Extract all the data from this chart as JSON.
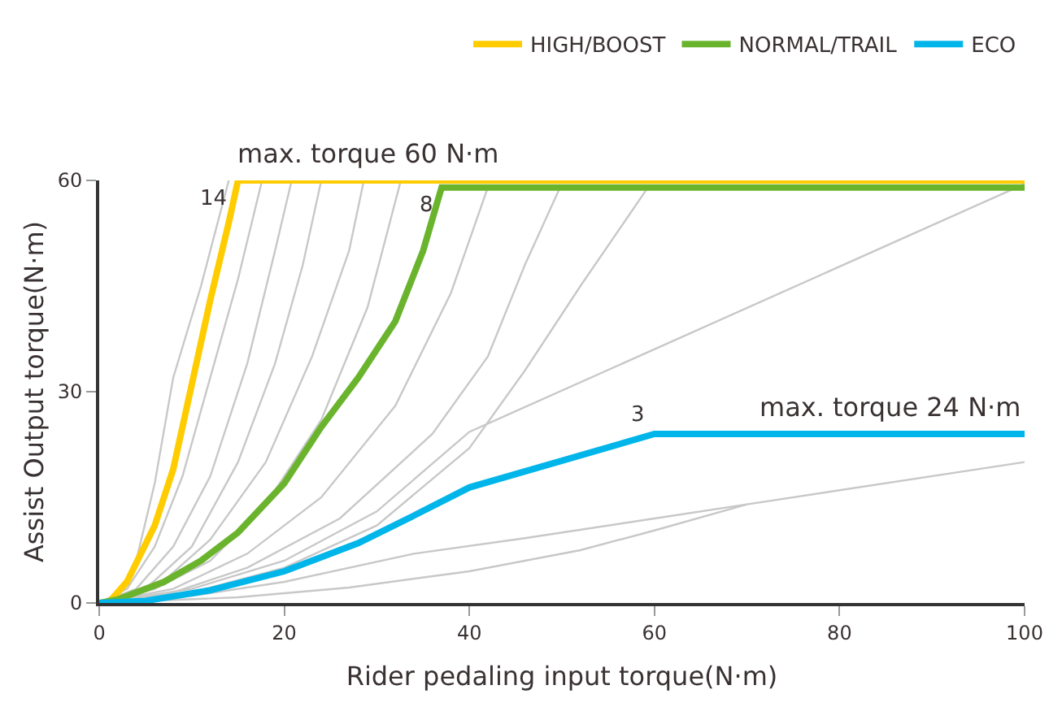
{
  "chart_data": {
    "type": "line",
    "xlabel": "Rider pedaling input torque(N·m)",
    "ylabel": "Assist Output torque(N·m)",
    "xlim": [
      0,
      100
    ],
    "ylim": [
      0,
      60
    ],
    "xticks": [
      0,
      20,
      40,
      60,
      80,
      100
    ],
    "yticks": [
      0,
      30,
      60
    ],
    "legend": "top right",
    "marker": "none",
    "line_style": "solid",
    "series": [
      {
        "color": "#c8c8c8",
        "x": [
          0,
          2,
          4,
          6,
          8,
          11,
          14
        ],
        "values": [
          0,
          1,
          6,
          17,
          32,
          45,
          60
        ]
      },
      {
        "color": "#c8c8c8",
        "x": [
          0,
          3,
          6,
          9,
          12,
          15,
          17.6
        ],
        "values": [
          0,
          2,
          8,
          18,
          32,
          46,
          60
        ]
      },
      {
        "color": "#c8c8c8",
        "x": [
          0,
          4,
          8,
          12,
          16,
          19,
          20.8
        ],
        "values": [
          0,
          2,
          8,
          18,
          34,
          50,
          60
        ]
      },
      {
        "color": "#c8c8c8",
        "x": [
          0,
          5,
          10,
          15,
          19,
          22,
          24
        ],
        "values": [
          0,
          2,
          8,
          20,
          34,
          48,
          60
        ]
      },
      {
        "color": "#c8c8c8",
        "x": [
          0,
          6,
          12,
          18,
          23,
          27,
          28.6
        ],
        "values": [
          0,
          2,
          9,
          20,
          35,
          50,
          60
        ]
      },
      {
        "color": "#c8c8c8",
        "x": [
          0,
          6,
          12,
          18,
          24,
          29,
          32.6
        ],
        "values": [
          0,
          2,
          6,
          14,
          26,
          42,
          60
        ]
      },
      {
        "color": "#c8c8c8",
        "x": [
          0,
          8,
          16,
          24,
          32,
          38,
          42
        ],
        "values": [
          0,
          2,
          7,
          15,
          28,
          44,
          59
        ]
      },
      {
        "color": "#c8c8c8",
        "x": [
          0,
          8,
          16,
          26,
          36,
          42,
          46,
          49.8
        ],
        "values": [
          0,
          1.5,
          5,
          12,
          24,
          35,
          48,
          59
        ]
      },
      {
        "color": "#c8c8c8",
        "x": [
          0,
          10,
          20,
          30,
          40,
          46,
          52,
          59.3
        ],
        "values": [
          0,
          1.5,
          5,
          11,
          22,
          33,
          45,
          59
        ]
      },
      {
        "color": "#c8c8c8",
        "x": [
          0,
          10,
          20,
          30,
          40,
          100
        ],
        "values": [
          0,
          2,
          6,
          13,
          24.3,
          59.5
        ]
      },
      {
        "color": "#c8c8c8",
        "x": [
          0,
          15,
          27,
          40,
          52,
          60,
          70,
          100
        ],
        "values": [
          0,
          0.8,
          2.2,
          4.5,
          7.5,
          10.3,
          14,
          20
        ]
      },
      {
        "color": "#c8c8c8",
        "x": [
          0,
          10,
          20,
          34,
          46,
          60,
          70
        ],
        "values": [
          0,
          1,
          3,
          7,
          9.2,
          12,
          14
        ]
      },
      {
        "name": "HIGH/BOOST",
        "color": "#ffcc00",
        "x": [
          0,
          1,
          3,
          6,
          8,
          10,
          12,
          14,
          15,
          100
        ],
        "values": [
          0,
          0,
          3,
          11,
          19,
          31,
          43,
          54,
          60,
          60
        ]
      },
      {
        "name": "NORMAL/TRAIL",
        "color": "#6ab42d",
        "x": [
          0,
          2,
          7,
          11,
          15,
          20,
          24,
          28,
          32,
          35,
          37,
          100
        ],
        "values": [
          0,
          0.5,
          3,
          6,
          10,
          17,
          25,
          32,
          40,
          50,
          59,
          59
        ]
      },
      {
        "name": "ECO",
        "color": "#00b5e9",
        "x": [
          0,
          5,
          12,
          20,
          28,
          34,
          40,
          60,
          100
        ],
        "values": [
          0,
          0.3,
          1.8,
          4.5,
          8.5,
          12.4,
          16.4,
          24,
          24
        ]
      }
    ],
    "annotations": [
      {
        "text": "max. torque 60 N·m",
        "x": 29,
        "y": 60
      },
      {
        "text": "max. torque 24 N·m",
        "x": 100,
        "y": 24
      },
      {
        "text": "14",
        "x": 15,
        "y": 60
      },
      {
        "text": "8",
        "x": 37,
        "y": 59
      },
      {
        "text": "3",
        "x": 60,
        "y": 24
      }
    ]
  }
}
